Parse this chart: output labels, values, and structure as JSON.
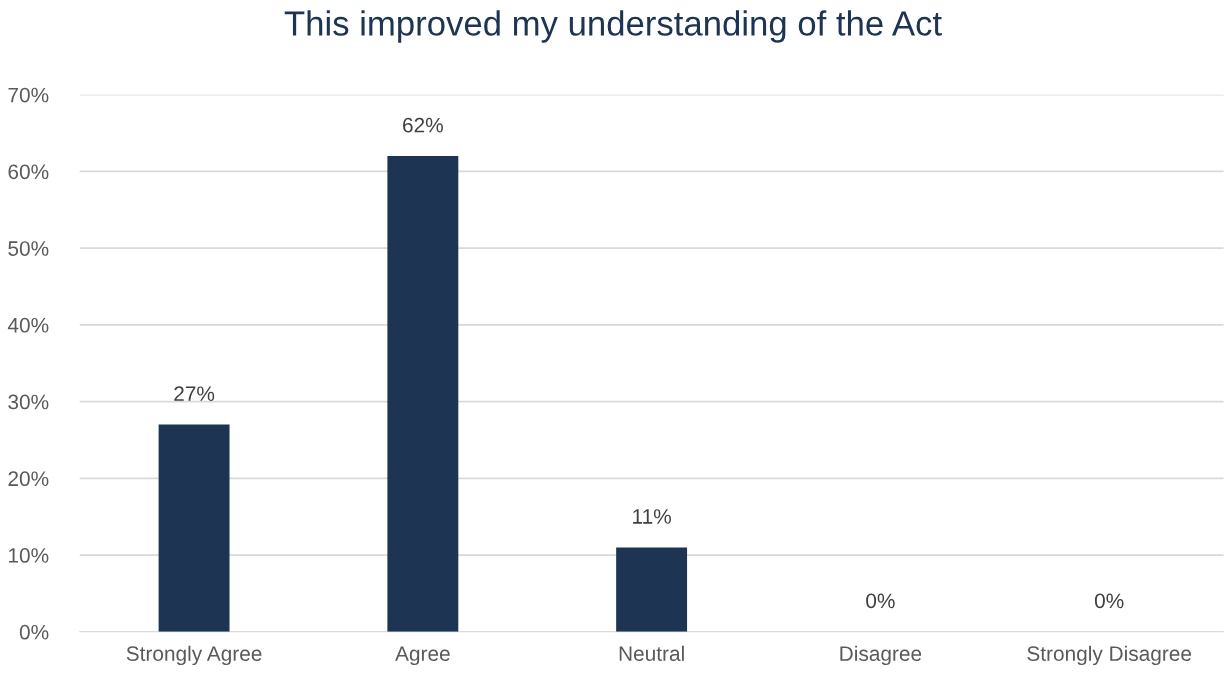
{
  "chart_data": {
    "type": "bar",
    "title": "This improved my understanding of the Act",
    "categories": [
      "Strongly Agree",
      "Agree",
      "Neutral",
      "Disagree",
      "Strongly Disagree"
    ],
    "values": [
      27,
      62,
      11,
      0,
      0
    ],
    "color": "#1d3553",
    "value_labels": [
      "27%",
      "62%",
      "11%",
      "0%",
      "0%"
    ],
    "ylim": [
      0,
      70
    ],
    "yticks": [
      {
        "value": 0,
        "label": "0%"
      },
      {
        "value": 10,
        "label": "10%"
      },
      {
        "value": 20,
        "label": "20%"
      },
      {
        "value": 30,
        "label": "30%"
      },
      {
        "value": 40,
        "label": "40%"
      },
      {
        "value": 50,
        "label": "50%"
      },
      {
        "value": 60,
        "label": "60%"
      },
      {
        "value": 70,
        "label": "70%"
      }
    ],
    "grid": "y"
  }
}
